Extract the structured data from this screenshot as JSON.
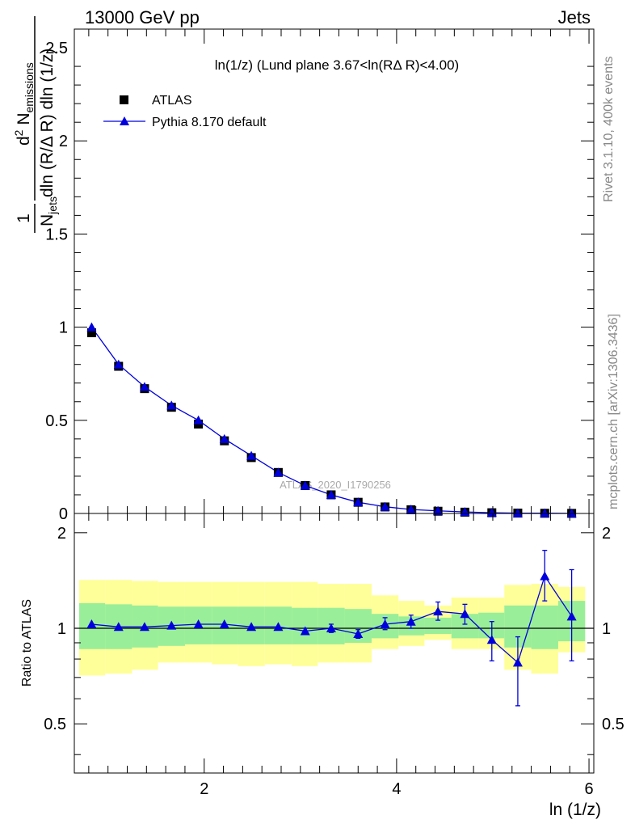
{
  "header": {
    "left": "13000 GeV pp",
    "right": "Jets"
  },
  "side_text": {
    "top": "Rivet 3.1.10,  400k events",
    "bottom": "mcplots.cern.ch [arXiv:1306.3436]"
  },
  "watermark": "ATLAS_2020_I1790256",
  "colors": {
    "atlas": "#000000",
    "pythia": "#0000dd",
    "band_outer": "#ffff99",
    "band_inner": "#99ee99"
  },
  "chart_data": [
    {
      "type": "scatter",
      "title": "ln(1/z) (Lund plane 3.67<ln(RΔ R)<4.00)",
      "xlabel": "ln (1/z)",
      "ylabel": "1/N_jets d² N_emissions / dln (R/Δ R) dln (1/z)",
      "xlim": [
        0.65,
        6.05
      ],
      "ylim": [
        0,
        2.6
      ],
      "x_ticks": [
        "2",
        "4",
        "6"
      ],
      "y_ticks": [
        "0",
        "0.5",
        "1",
        "1.5",
        "2",
        "2.5"
      ],
      "legend": {
        "placement": "top-left",
        "entries": [
          "ATLAS",
          "Pythia 8.170 default"
        ]
      },
      "x": [
        0.83,
        1.11,
        1.38,
        1.66,
        1.94,
        2.21,
        2.49,
        2.77,
        3.05,
        3.32,
        3.6,
        3.88,
        4.15,
        4.43,
        4.71,
        4.99,
        5.26,
        5.54,
        5.82
      ],
      "series": [
        {
          "name": "ATLAS",
          "values": [
            0.97,
            0.79,
            0.67,
            0.57,
            0.48,
            0.39,
            0.3,
            0.22,
            0.15,
            0.1,
            0.06,
            0.035,
            0.02,
            0.012,
            0.007,
            0.004,
            0.002,
            0.001,
            0.0005
          ]
        },
        {
          "name": "Pythia 8.170 default",
          "values": [
            1.0,
            0.8,
            0.68,
            0.58,
            0.5,
            0.4,
            0.31,
            0.22,
            0.15,
            0.1,
            0.06,
            0.036,
            0.021,
            0.014,
            0.008,
            0.0037,
            0.0015,
            0.0015,
            0.0006
          ]
        }
      ]
    },
    {
      "type": "line",
      "ylabel": "Ratio to ATLAS",
      "xlim": [
        0.65,
        6.05
      ],
      "ylim": [
        0.35,
        2.3
      ],
      "y_ticks": [
        "0.5",
        "1",
        "2"
      ],
      "reference_line": 1,
      "bins": [
        [
          0.7,
          0.97
        ],
        [
          0.97,
          1.25
        ],
        [
          1.25,
          1.52
        ],
        [
          1.52,
          1.8
        ],
        [
          1.8,
          2.08
        ],
        [
          2.08,
          2.35
        ],
        [
          2.35,
          2.63
        ],
        [
          2.63,
          2.91
        ],
        [
          2.91,
          3.18
        ],
        [
          3.18,
          3.46
        ],
        [
          3.46,
          3.74
        ],
        [
          3.74,
          4.02
        ],
        [
          4.02,
          4.29
        ],
        [
          4.29,
          4.57
        ],
        [
          4.57,
          4.85
        ],
        [
          4.85,
          5.12
        ],
        [
          5.12,
          5.4
        ],
        [
          5.4,
          5.68
        ],
        [
          5.68,
          5.96
        ]
      ],
      "band_outer": [
        [
          0.71,
          1.42
        ],
        [
          0.72,
          1.42
        ],
        [
          0.74,
          1.41
        ],
        [
          0.78,
          1.4
        ],
        [
          0.78,
          1.4
        ],
        [
          0.77,
          1.4
        ],
        [
          0.76,
          1.4
        ],
        [
          0.77,
          1.4
        ],
        [
          0.76,
          1.4
        ],
        [
          0.78,
          1.38
        ],
        [
          0.78,
          1.38
        ],
        [
          0.86,
          1.27
        ],
        [
          0.88,
          1.22
        ],
        [
          0.92,
          1.18
        ],
        [
          0.86,
          1.25
        ],
        [
          0.86,
          1.25
        ],
        [
          0.74,
          1.37
        ],
        [
          0.72,
          1.38
        ],
        [
          0.84,
          1.35
        ]
      ],
      "band_inner": [
        [
          0.86,
          1.2
        ],
        [
          0.86,
          1.19
        ],
        [
          0.87,
          1.18
        ],
        [
          0.88,
          1.17
        ],
        [
          0.89,
          1.17
        ],
        [
          0.89,
          1.17
        ],
        [
          0.89,
          1.17
        ],
        [
          0.89,
          1.17
        ],
        [
          0.89,
          1.16
        ],
        [
          0.89,
          1.16
        ],
        [
          0.9,
          1.15
        ],
        [
          0.93,
          1.11
        ],
        [
          0.95,
          1.09
        ],
        [
          0.96,
          1.08
        ],
        [
          0.93,
          1.11
        ],
        [
          0.93,
          1.12
        ],
        [
          0.87,
          1.18
        ],
        [
          0.86,
          1.18
        ],
        [
          0.91,
          1.22
        ]
      ],
      "x": [
        0.83,
        1.11,
        1.38,
        1.66,
        1.94,
        2.21,
        2.49,
        2.77,
        3.05,
        3.32,
        3.6,
        3.88,
        4.15,
        4.43,
        4.71,
        4.99,
        5.26,
        5.54,
        5.82
      ],
      "series": [
        {
          "name": "Pythia 8.170 default",
          "values": [
            1.03,
            1.01,
            1.01,
            1.02,
            1.03,
            1.03,
            1.01,
            1.01,
            0.98,
            1.0,
            0.96,
            1.03,
            1.05,
            1.13,
            1.11,
            0.92,
            0.78,
            1.46,
            1.09
          ],
          "err_low": [
            0,
            0,
            0,
            0,
            0,
            0,
            0,
            0,
            0.02,
            0.03,
            0.03,
            0.04,
            0.05,
            0.07,
            0.08,
            0.13,
            0.21,
            0.24,
            0.3
          ],
          "err_high": [
            0,
            0,
            0,
            0,
            0,
            0,
            0,
            0,
            0.02,
            0.03,
            0.03,
            0.05,
            0.05,
            0.08,
            0.08,
            0.13,
            0.16,
            0.3,
            0.44
          ]
        }
      ]
    }
  ]
}
